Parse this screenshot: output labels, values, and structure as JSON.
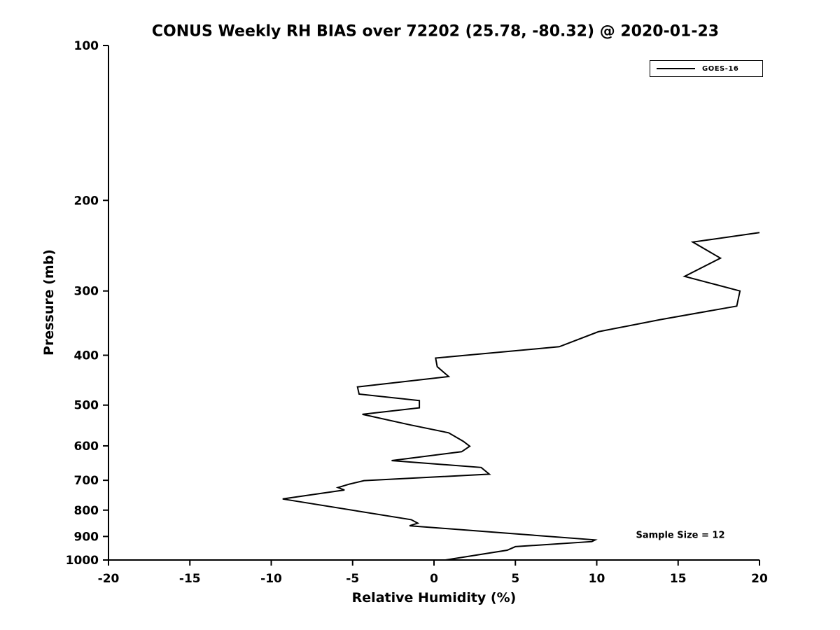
{
  "figure": {
    "background_color": "#ffffff",
    "axis_color": "#000000"
  },
  "chart_data": {
    "type": "line",
    "title": "CONUS Weekly RH BIAS over 72202 (25.78, -80.32) @ 2020-01-23",
    "xlabel": "Relative Humidity (%)",
    "ylabel": "Pressure (mb)",
    "x_unit": "%",
    "y_unit": "mb",
    "xlim": [
      -20,
      20
    ],
    "xticks": [
      -20,
      -15,
      -10,
      -5,
      0,
      5,
      10,
      15,
      20
    ],
    "ylim": [
      100,
      1000
    ],
    "yticks": [
      100,
      200,
      300,
      400,
      500,
      600,
      700,
      800,
      900,
      1000
    ],
    "yscale": "log",
    "y_inverted": true,
    "grid": false,
    "legend_position": "top-right",
    "annotation": "Sample Size = 12",
    "series": [
      {
        "name": "GOES-16",
        "color": "#000000",
        "line_width": 2,
        "points": [
          {
            "p": 231,
            "rh": 20.0
          },
          {
            "p": 241,
            "rh": 15.9
          },
          {
            "p": 259,
            "rh": 17.6
          },
          {
            "p": 281,
            "rh": 15.4
          },
          {
            "p": 300,
            "rh": 18.8
          },
          {
            "p": 321,
            "rh": 18.6
          },
          {
            "p": 341,
            "rh": 13.9
          },
          {
            "p": 360,
            "rh": 10.1
          },
          {
            "p": 385,
            "rh": 7.7
          },
          {
            "p": 405,
            "rh": 0.1
          },
          {
            "p": 421,
            "rh": 0.2
          },
          {
            "p": 440,
            "rh": 0.9
          },
          {
            "p": 461,
            "rh": -4.7
          },
          {
            "p": 476,
            "rh": -4.6
          },
          {
            "p": 490,
            "rh": -0.9
          },
          {
            "p": 506,
            "rh": -0.9
          },
          {
            "p": 521,
            "rh": -4.4
          },
          {
            "p": 546,
            "rh": -1.5
          },
          {
            "p": 566,
            "rh": 0.9
          },
          {
            "p": 588,
            "rh": 1.8
          },
          {
            "p": 601,
            "rh": 2.2
          },
          {
            "p": 616,
            "rh": 1.7
          },
          {
            "p": 641,
            "rh": -2.6
          },
          {
            "p": 661,
            "rh": 2.9
          },
          {
            "p": 681,
            "rh": 3.4
          },
          {
            "p": 701,
            "rh": -4.3
          },
          {
            "p": 712,
            "rh": -5.2
          },
          {
            "p": 723,
            "rh": -5.9
          },
          {
            "p": 731,
            "rh": -5.5
          },
          {
            "p": 761,
            "rh": -9.3
          },
          {
            "p": 835,
            "rh": -1.4
          },
          {
            "p": 848,
            "rh": -1.0
          },
          {
            "p": 858,
            "rh": -1.5
          },
          {
            "p": 914,
            "rh": 9.9
          },
          {
            "p": 921,
            "rh": 9.7
          },
          {
            "p": 942,
            "rh": 5.0
          },
          {
            "p": 957,
            "rh": 4.5
          },
          {
            "p": 1000,
            "rh": 0.7
          }
        ]
      }
    ]
  }
}
